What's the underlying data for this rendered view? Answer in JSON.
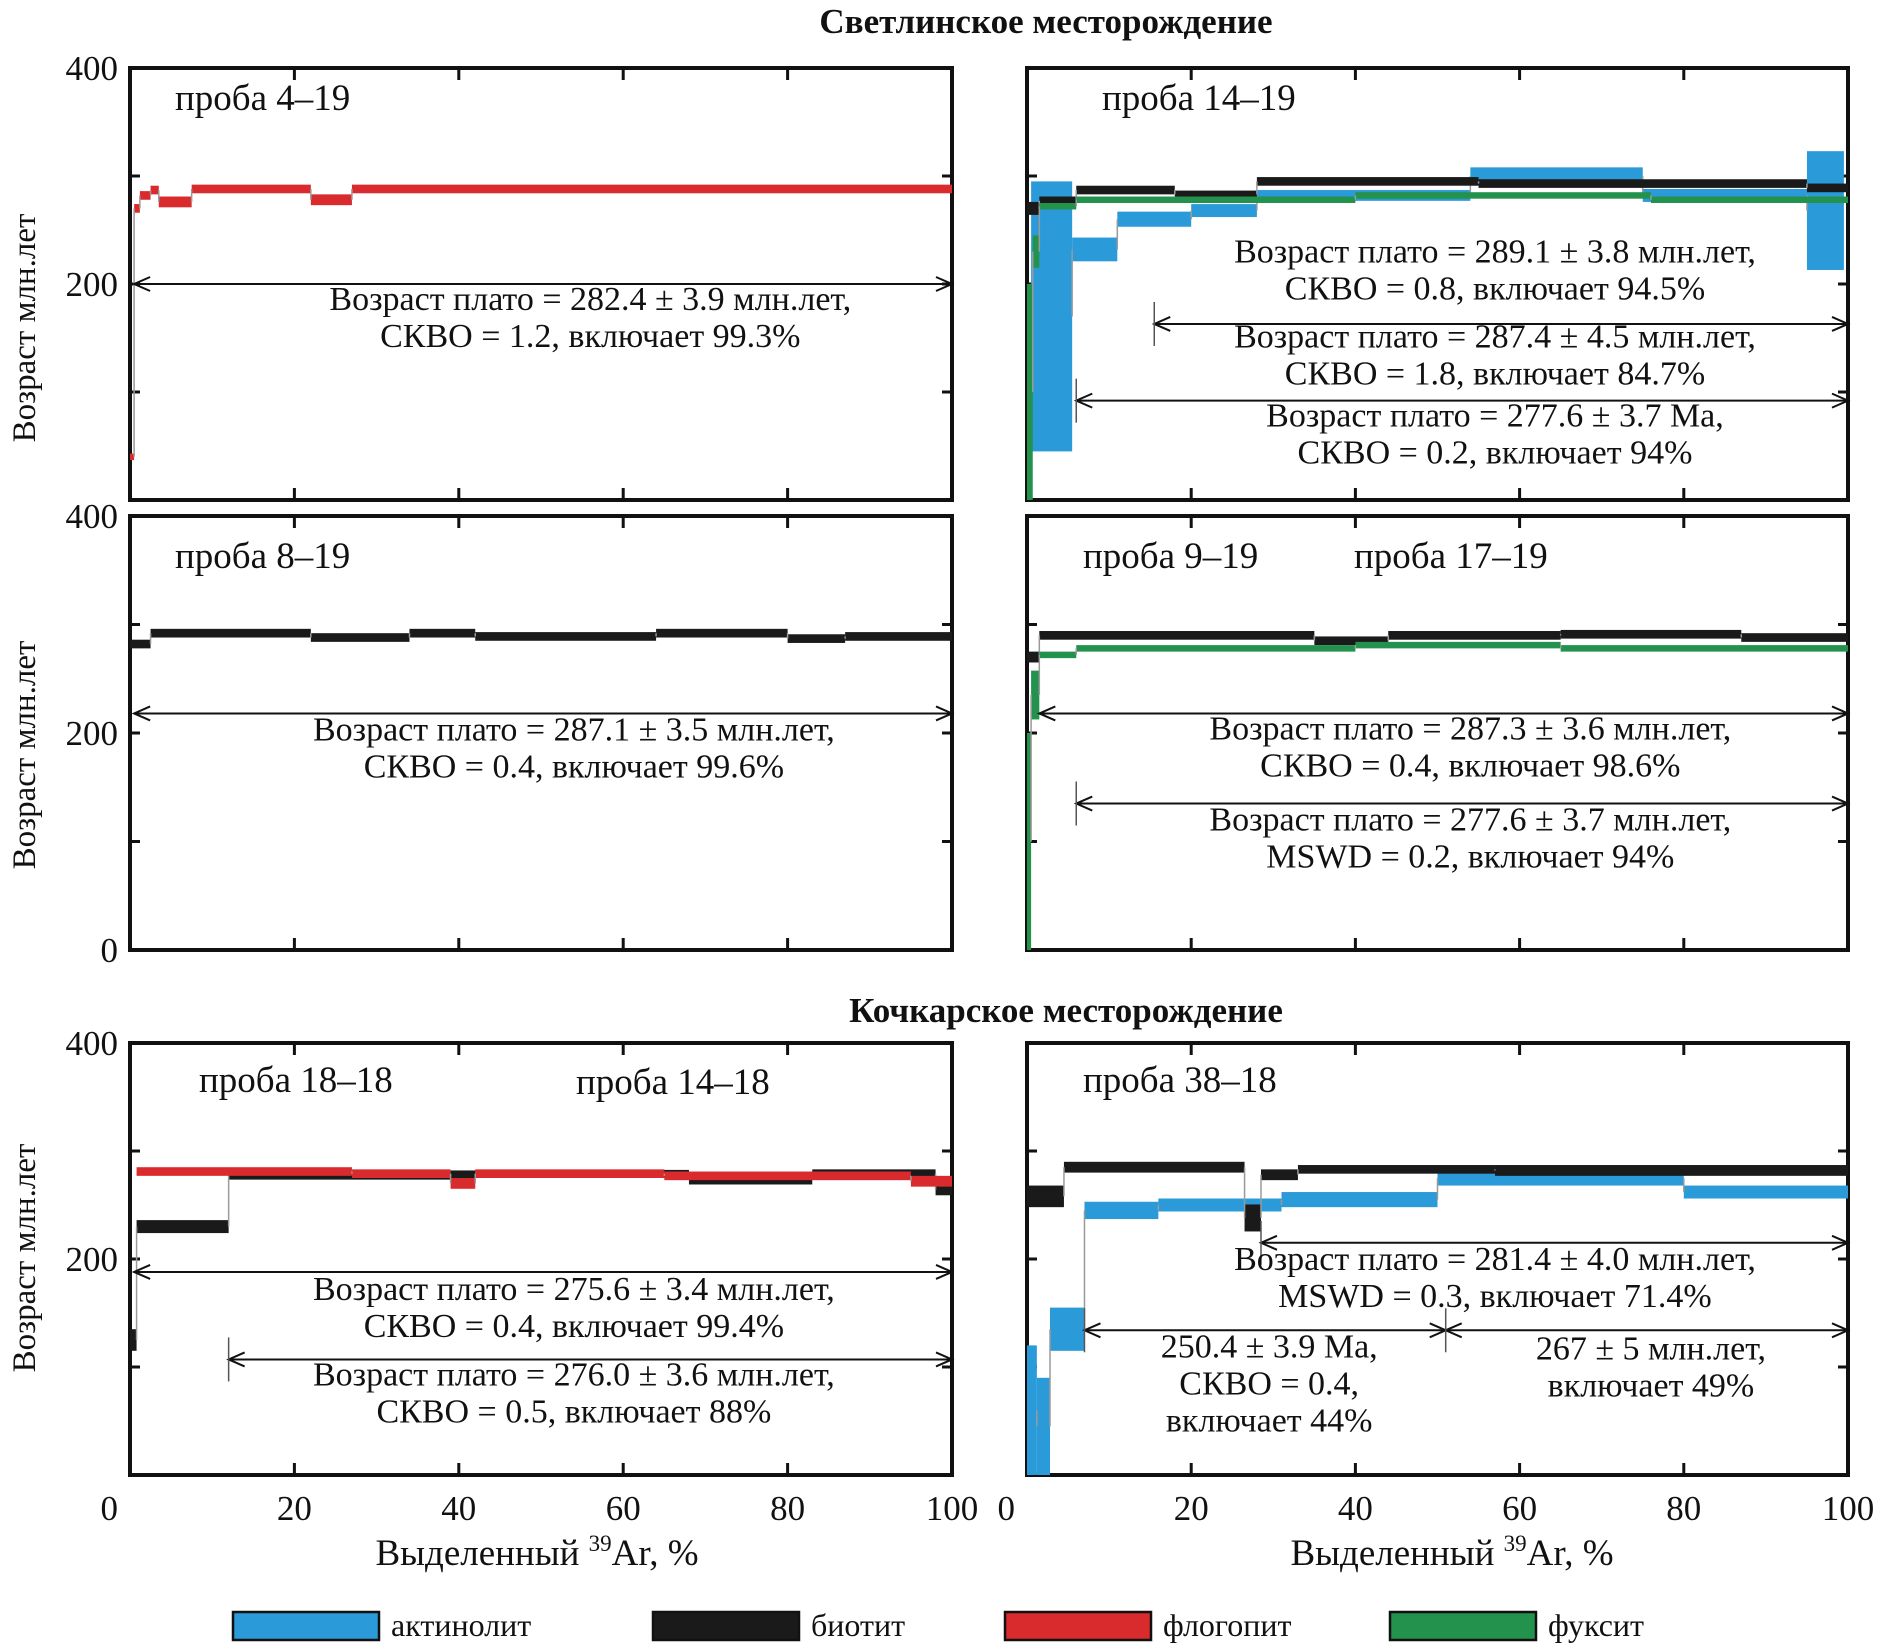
{
  "titles": {
    "svetlinskoe": "Светлинское месторождение",
    "kochkarskoe": "Кочкарское месторождение"
  },
  "colors": {
    "actinolite": "#2b9ad9",
    "biotite": "#1a1a1a",
    "phlogopite": "#d92b2e",
    "fuchsite": "#22924c"
  },
  "legend": [
    {
      "key": "actinolite",
      "label": "актинолит"
    },
    {
      "key": "biotite",
      "label": "биотит"
    },
    {
      "key": "phlogopite",
      "label": "флогопит"
    },
    {
      "key": "fuchsite",
      "label": "фуксит"
    }
  ],
  "axes": {
    "ylabel": "Возраст млн.лет",
    "xlabel_pre": "Выделенный ",
    "xlabel_sup": "39",
    "xlabel_post": "Ar, %",
    "xticks": [
      "0",
      "20",
      "40",
      "60",
      "80",
      "100"
    ],
    "yticks_full": [
      "0",
      "200",
      "400"
    ],
    "yticks_top": [
      "200",
      "400"
    ],
    "ytick_mid": "200"
  },
  "chart_data": [
    {
      "type": "step",
      "panel": "a",
      "deposit": "Светлинское месторождение",
      "labels": [
        {
          "text": "проба 4–19",
          "color": "#111"
        }
      ],
      "xlim": [
        0,
        100
      ],
      "ylim": [
        0,
        400
      ],
      "series": [
        {
          "mineral": "phlogopite",
          "steps": [
            [
              0,
              0.5,
              40,
              6
            ],
            [
              0.5,
              1.2,
              270,
              8
            ],
            [
              1.2,
              2.5,
              282,
              8
            ],
            [
              2.5,
              3.5,
              287,
              8
            ],
            [
              3.5,
              7.5,
              276,
              10
            ],
            [
              7.5,
              22,
              288,
              8
            ],
            [
              22,
              27,
              278,
              10
            ],
            [
              27,
              100,
              288,
              8
            ]
          ]
        }
      ],
      "plateaus": [
        {
          "x0": 0.5,
          "x1": 100,
          "y": 200,
          "lines": [
            "Возраст плато = 282.4 ± 3.9 млн.лет,",
            "СКВО = 1.2, включает 99.3%"
          ],
          "text_x": 56,
          "text_y": 176
        }
      ]
    },
    {
      "type": "step",
      "panel": "b",
      "deposit": "Светлинское месторождение",
      "labels": [
        {
          "text": "проба 14–19",
          "color": "#111"
        }
      ],
      "xlim": [
        0,
        100
      ],
      "ylim": [
        0,
        400
      ],
      "series": [
        {
          "mineral": "actinolite",
          "steps": [
            [
              0.5,
              5.5,
              170,
              250
            ],
            [
              5.5,
              11,
              232,
              22
            ],
            [
              11,
              20,
              260,
              14
            ],
            [
              20,
              28,
              268,
              12
            ],
            [
              28,
              54,
              282,
              10
            ],
            [
              54,
              75,
              300,
              16
            ],
            [
              75,
              95,
              282,
              12
            ],
            [
              95,
              99.5,
              268,
              110
            ]
          ]
        },
        {
          "mineral": "biotite",
          "steps": [
            [
              0,
              1.5,
              270,
              12
            ],
            [
              1.5,
              6,
              277,
              8
            ],
            [
              6,
              18,
              287,
              8
            ],
            [
              18,
              28,
              283,
              7
            ],
            [
              28,
              55,
              295,
              8
            ],
            [
              55,
              95,
              293,
              8
            ],
            [
              95,
              100,
              289,
              8
            ]
          ]
        },
        {
          "mineral": "fuchsite",
          "steps": [
            [
              0,
              0.7,
              100,
              200
            ],
            [
              0.7,
              1.5,
              230,
              30
            ],
            [
              1.5,
              6,
              272,
              6
            ],
            [
              6,
              40,
              278,
              6
            ],
            [
              40,
              76,
              282,
              6
            ],
            [
              76,
              100,
              278,
              6
            ]
          ]
        }
      ],
      "plateaus": [
        {
          "x0": 15.5,
          "x1": 100,
          "y": 163,
          "lines": [
            "Возраст плато = 289.1 ± 3.8 млн.лет,",
            "СКВО = 0.8, включает 94.5%"
          ],
          "text_x": 57,
          "text_y": 220
        },
        {
          "x0": 6,
          "x1": 100,
          "y": 92,
          "lines": [
            "Возраст плато = 287.4 ± 4.5 млн.лет,",
            "СКВО = 1.8, включает 84.7%"
          ],
          "text_x": 57,
          "text_y": 141
        },
        {
          "x0": null,
          "x1": null,
          "y": null,
          "lines": [
            "Возраст плато = 277.6 ± 3.7 Ma,",
            "СКВО = 0.2, включает 94%"
          ],
          "text_x": 57,
          "text_y": 68
        }
      ]
    },
    {
      "type": "step",
      "panel": "c",
      "deposit": "Светлинское месторождение",
      "labels": [
        {
          "text": "проба 8–19",
          "color": "#111"
        }
      ],
      "xlim": [
        0,
        100
      ],
      "ylim": [
        0,
        400
      ],
      "series": [
        {
          "mineral": "biotite",
          "steps": [
            [
              0,
              2.5,
              282,
              8
            ],
            [
              2.5,
              22,
              292,
              8
            ],
            [
              22,
              34,
              288,
              8
            ],
            [
              34,
              42,
              292,
              8
            ],
            [
              42,
              64,
              289,
              8
            ],
            [
              64,
              80,
              292,
              8
            ],
            [
              80,
              87,
              287,
              8
            ],
            [
              87,
              100,
              289,
              8
            ]
          ]
        }
      ],
      "plateaus": [
        {
          "x0": 0.5,
          "x1": 100,
          "y": 218,
          "lines": [
            "Возраст плато = 287.1 ± 3.5 млн.лет,",
            "СКВО = 0.4, включает 99.6%"
          ],
          "text_x": 54,
          "text_y": 193
        }
      ]
    },
    {
      "type": "step",
      "panel": "d",
      "deposit": "Светлинское месторождение",
      "labels": [
        {
          "text": "проба 9–19",
          "color": "#111"
        },
        {
          "text": "проба 17–19",
          "color": "#22924c"
        }
      ],
      "xlim": [
        0,
        100
      ],
      "ylim": [
        0,
        400
      ],
      "series": [
        {
          "mineral": "biotite",
          "steps": [
            [
              0,
              1.5,
              270,
              10
            ],
            [
              1.5,
              35,
              290,
              8
            ],
            [
              35,
              44,
              285,
              8
            ],
            [
              44,
              65,
              290,
              8
            ],
            [
              65,
              87,
              291,
              8
            ],
            [
              87,
              100,
              288,
              8
            ]
          ]
        },
        {
          "mineral": "fuchsite",
          "steps": [
            [
              0,
              0.5,
              100,
              200
            ],
            [
              0.5,
              1.5,
              235,
              45
            ],
            [
              1.5,
              6,
              272,
              6
            ],
            [
              6,
              40,
              278,
              6
            ],
            [
              40,
              65,
              281,
              6
            ],
            [
              65,
              100,
              278,
              6
            ]
          ]
        }
      ],
      "plateaus": [
        {
          "x0": 1.5,
          "x1": 100,
          "y": 218,
          "lines": [
            "Возраст плато = 287.3 ± 3.6 млн.лет,",
            "СКВО = 0.4, включает 98.6%"
          ],
          "text_x": 54,
          "text_y": 194
        },
        {
          "x0": 6,
          "x1": 100,
          "y": 135,
          "lines": [
            "Возраст плато = 277.6 ± 3.7 млн.лет,",
            "MSWD = 0.2, включает 94%"
          ],
          "text_x": 54,
          "text_y": 110
        }
      ]
    },
    {
      "type": "step",
      "panel": "e",
      "deposit": "Кочкарское месторождение",
      "labels": [
        {
          "text": "проба 18–18",
          "color": "#111"
        },
        {
          "text": "проба 14–18",
          "color": "#d92b2e"
        }
      ],
      "xlim": [
        0,
        100
      ],
      "ylim": [
        0,
        400
      ],
      "series": [
        {
          "mineral": "biotite",
          "steps": [
            [
              0,
              0.8,
              125,
              20
            ],
            [
              0.8,
              12,
              230,
              12
            ],
            [
              12,
              39,
              277,
              7
            ],
            [
              39,
              42,
              278,
              8
            ],
            [
              42,
              68,
              279,
              7
            ],
            [
              68,
              83,
              273,
              8
            ],
            [
              83,
              98,
              279,
              8
            ],
            [
              98,
              100,
              264,
              10
            ]
          ]
        },
        {
          "mineral": "phlogopite",
          "steps": [
            [
              0.8,
              27,
              281,
              8
            ],
            [
              27,
              39,
              279,
              8
            ],
            [
              39,
              42,
              270,
              10
            ],
            [
              42,
              65,
              279,
              8
            ],
            [
              65,
              95,
              277,
              8
            ],
            [
              95,
              100,
              272,
              10
            ]
          ]
        }
      ],
      "plateaus": [
        {
          "x0": 0.5,
          "x1": 100,
          "y": 188,
          "lines": [
            "Возраст плато = 275.6 ± 3.4 млн.лет,",
            "СКВО = 0.4, включает 99.4%"
          ],
          "text_x": 54,
          "text_y": 162
        },
        {
          "x0": 12,
          "x1": 100,
          "y": 107,
          "lines": [
            "Возраст плато = 276.0 ± 3.6 млн.лет,",
            "СКВО = 0.5, включает 88%"
          ],
          "text_x": 54,
          "text_y": 83
        }
      ]
    },
    {
      "type": "step",
      "panel": "f",
      "deposit": "Кочкарское месторождение",
      "labels": [
        {
          "text": "проба 38–18",
          "color": "#111"
        }
      ],
      "xlim": [
        0,
        100
      ],
      "ylim": [
        0,
        400
      ],
      "series": [
        {
          "mineral": "actinolite",
          "steps": [
            [
              0,
              1.2,
              60,
              120
            ],
            [
              1.2,
              2.8,
              45,
              90
            ],
            [
              2.8,
              7,
              135,
              40
            ],
            [
              7,
              16,
              245,
              16
            ],
            [
              16,
              31,
              250,
              12
            ],
            [
              31,
              50,
              255,
              14
            ],
            [
              50,
              80,
              275,
              14
            ],
            [
              80,
              100,
              262,
              12
            ]
          ]
        },
        {
          "mineral": "biotite",
          "steps": [
            [
              0,
              4.5,
              258,
              20
            ],
            [
              4.5,
              26.5,
              285,
              10
            ],
            [
              26.5,
              28.5,
              238,
              25
            ],
            [
              28.5,
              33,
              278,
              10
            ],
            [
              33,
              57,
              283,
              8
            ],
            [
              57,
              100,
              282,
              10
            ]
          ]
        }
      ],
      "plateaus": [
        {
          "x0": 28.5,
          "x1": 100,
          "y": 215,
          "lines": [
            "Возраст плато = 281.4 ± 4.0 млн.лет,",
            "MSWD = 0.3, включает 71.4%"
          ],
          "text_x": 57,
          "text_y": 190
        },
        {
          "x0": 7,
          "x1": 51,
          "y": 134,
          "lines": [
            "250.4 ± 3.9 Ma,",
            "СКВО = 0.4,",
            "включает 44%"
          ],
          "text_x": 29.5,
          "text_y": 109
        },
        {
          "x0": 51,
          "x1": 100,
          "y": 134,
          "lines": [
            "267 ± 5 млн.лет,",
            "включает 49%"
          ],
          "text_x": 76,
          "text_y": 107
        }
      ]
    }
  ]
}
